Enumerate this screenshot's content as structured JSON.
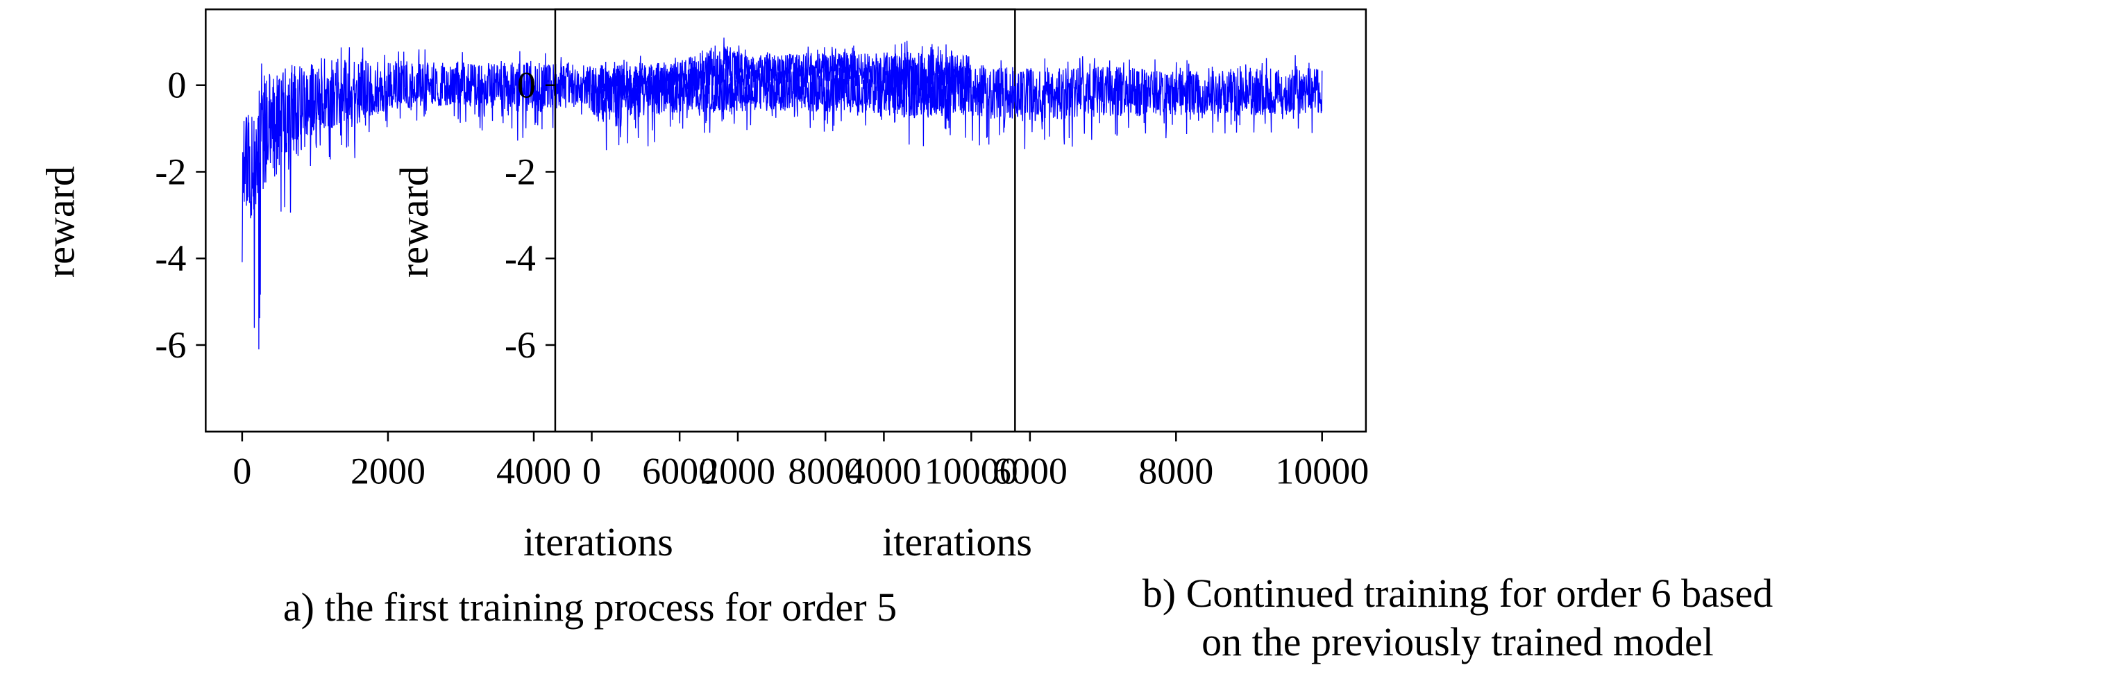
{
  "chart_data": [
    {
      "type": "line",
      "caption": "a) the first training process for order 5",
      "xlabel": "iterations",
      "ylabel": "reward",
      "xlim": [
        -500,
        10600
      ],
      "ylim": [
        -8,
        1.75
      ],
      "xticks": [
        0,
        2000,
        4000,
        6000,
        8000,
        10000
      ],
      "yticks": [
        0,
        -2,
        -4,
        -6
      ],
      "xtick_labels": [
        "0",
        "2000",
        "4000",
        "6000",
        "8000",
        "10000"
      ],
      "ytick_labels": [
        "0",
        "-2",
        "-4",
        "-6"
      ],
      "grid": false,
      "series": [
        {
          "color": "#0000ff",
          "envelope": {
            "x": [
              0,
              100,
              200,
              300,
              500,
              700,
              1000,
              1500,
              2000,
              3000,
              4000,
              5000,
              6000,
              6500,
              7000,
              8000,
              9000,
              10000
            ],
            "upper": [
              -0.1,
              0.1,
              0.6,
              0.9,
              1.0,
              1.0,
              1.1,
              0.9,
              0.9,
              0.8,
              0.8,
              0.7,
              0.7,
              1.2,
              0.9,
              0.9,
              1.0,
              1.0
            ],
            "lower": [
              -4.1,
              -4.2,
              -7.5,
              -3.5,
              -5.1,
              -3.7,
              -1.8,
              -1.8,
              -1.0,
              -0.9,
              -1.4,
              -0.8,
              -0.6,
              -0.5,
              -0.6,
              -0.3,
              -0.9,
              -0.6
            ],
            "mean": [
              -2.5,
              -2.0,
              -1.8,
              -1.2,
              -0.9,
              -0.7,
              -0.4,
              -0.3,
              -0.2,
              -0.1,
              -0.1,
              0.0,
              0.2,
              0.3,
              0.3,
              0.4,
              0.2,
              0.1
            ]
          }
        }
      ]
    },
    {
      "type": "line",
      "caption": "b) Continued training for order 6 based\non the previously trained model",
      "xlabel": "iterations",
      "ylabel": "reward",
      "xlim": [
        -500,
        10600
      ],
      "ylim": [
        -8,
        1.75
      ],
      "xticks": [
        0,
        2000,
        4000,
        6000,
        8000,
        10000
      ],
      "yticks": [
        0,
        -2,
        -4,
        -6
      ],
      "xtick_labels": [
        "0",
        "2000",
        "4000",
        "6000",
        "8000",
        "10000"
      ],
      "ytick_labels": [
        "0",
        "-2",
        "-4",
        "-6"
      ],
      "grid": false,
      "series": [
        {
          "color": "#0000ff",
          "envelope": {
            "x": [
              0,
              300,
              1000,
              2000,
              3000,
              4000,
              4200,
              5000,
              6000,
              7000,
              8000,
              9000,
              10000
            ],
            "upper": [
              0.5,
              0.7,
              0.7,
              0.7,
              0.7,
              0.7,
              1.1,
              0.8,
              0.7,
              0.7,
              0.6,
              0.7,
              0.7
            ],
            "lower": [
              -1.1,
              -1.9,
              -1.2,
              -1.1,
              -1.1,
              -1.2,
              -1.5,
              -1.3,
              -1.6,
              -1.4,
              -1.3,
              -1.2,
              -1.1
            ],
            "mean": [
              -0.3,
              -0.3,
              -0.2,
              -0.2,
              -0.2,
              -0.2,
              -0.2,
              -0.2,
              -0.3,
              -0.2,
              -0.2,
              -0.3,
              -0.3
            ]
          }
        }
      ]
    }
  ]
}
